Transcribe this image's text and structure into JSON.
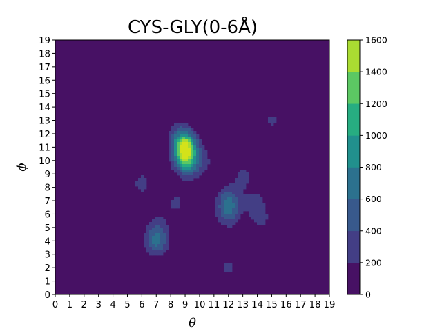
{
  "chart_data": {
    "type": "heatmap",
    "title": "CYS-GLY(0-6Å)",
    "xlabel": "θ",
    "ylabel": "ϕ",
    "xlim": [
      0,
      19
    ],
    "ylim": [
      0,
      19
    ],
    "x_ticks": [
      "0",
      "1",
      "2",
      "3",
      "4",
      "5",
      "6",
      "7",
      "8",
      "9",
      "10",
      "11",
      "12",
      "13",
      "14",
      "15",
      "16",
      "17",
      "18",
      "19"
    ],
    "y_ticks": [
      "0",
      "1",
      "2",
      "3",
      "4",
      "5",
      "6",
      "7",
      "8",
      "9",
      "10",
      "11",
      "12",
      "13",
      "14",
      "15",
      "16",
      "17",
      "18",
      "19"
    ],
    "colormap": "viridis",
    "colorbar": {
      "levels": [
        0,
        200,
        400,
        600,
        800,
        1000,
        1200,
        1400,
        1600
      ],
      "tick_labels": [
        "0",
        "200",
        "400",
        "600",
        "800",
        "1000",
        "1200",
        "1400",
        "1600"
      ],
      "colors": [
        "#471164",
        "#433e85",
        "#38598c",
        "#2c718e",
        "#21908d",
        "#27ad81",
        "#5cc863",
        "#aadc32",
        "#d4e21a"
      ]
    },
    "background_value": 0,
    "peaks": [
      {
        "theta": 9,
        "phi": 11,
        "value": 1450
      },
      {
        "theta": 9,
        "phi": 10,
        "value": 700
      },
      {
        "theta": 8.6,
        "phi": 12,
        "value": 300
      },
      {
        "theta": 9.5,
        "phi": 9.5,
        "value": 250
      },
      {
        "theta": 10.3,
        "phi": 10,
        "value": 200
      },
      {
        "theta": 12,
        "phi": 7,
        "value": 520
      },
      {
        "theta": 12,
        "phi": 6,
        "value": 400
      },
      {
        "theta": 13,
        "phi": 8.8,
        "value": 250
      },
      {
        "theta": 13.8,
        "phi": 6.8,
        "value": 280
      },
      {
        "theta": 14.3,
        "phi": 5.6,
        "value": 210
      },
      {
        "theta": 7,
        "phi": 4,
        "value": 650
      },
      {
        "theta": 7.2,
        "phi": 5.2,
        "value": 210
      },
      {
        "theta": 6,
        "phi": 8.3,
        "value": 260
      },
      {
        "theta": 8.4,
        "phi": 6.8,
        "value": 230
      },
      {
        "theta": 15,
        "phi": 13,
        "value": 220
      },
      {
        "theta": 12,
        "phi": 2,
        "value": 230
      }
    ]
  }
}
